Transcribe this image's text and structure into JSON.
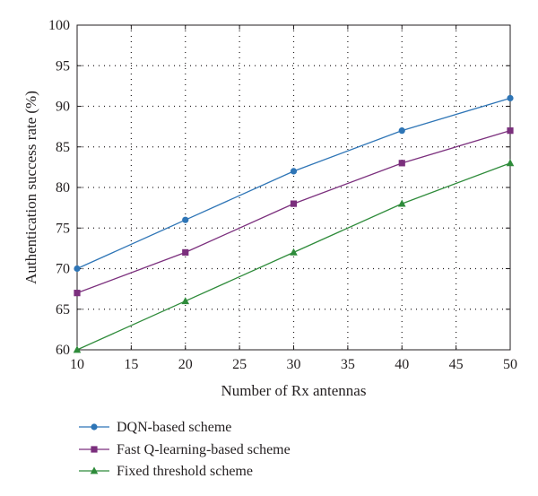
{
  "chart_data": {
    "type": "line",
    "xlabel": "Number of Rx antennas",
    "ylabel": "Authentication success rate (%)",
    "xlim": [
      10,
      50
    ],
    "ylim": [
      60,
      100
    ],
    "xticks": [
      10,
      15,
      20,
      25,
      30,
      35,
      40,
      45,
      50
    ],
    "yticks": [
      60,
      65,
      70,
      75,
      80,
      85,
      90,
      95,
      100
    ],
    "grid": true,
    "legend_position": "below",
    "x": [
      10,
      20,
      30,
      40,
      50
    ],
    "series": [
      {
        "name": "DQN-based scheme",
        "values": [
          70,
          76,
          82,
          87,
          91
        ],
        "color": "#2e75b6",
        "marker": "circle"
      },
      {
        "name": "Fast Q-learning-based scheme",
        "values": [
          67,
          72,
          78,
          83,
          87
        ],
        "color": "#7b2f7d",
        "marker": "square"
      },
      {
        "name": "Fixed threshold scheme",
        "values": [
          60,
          66,
          72,
          78,
          83
        ],
        "color": "#2e8b3a",
        "marker": "triangle"
      }
    ]
  }
}
